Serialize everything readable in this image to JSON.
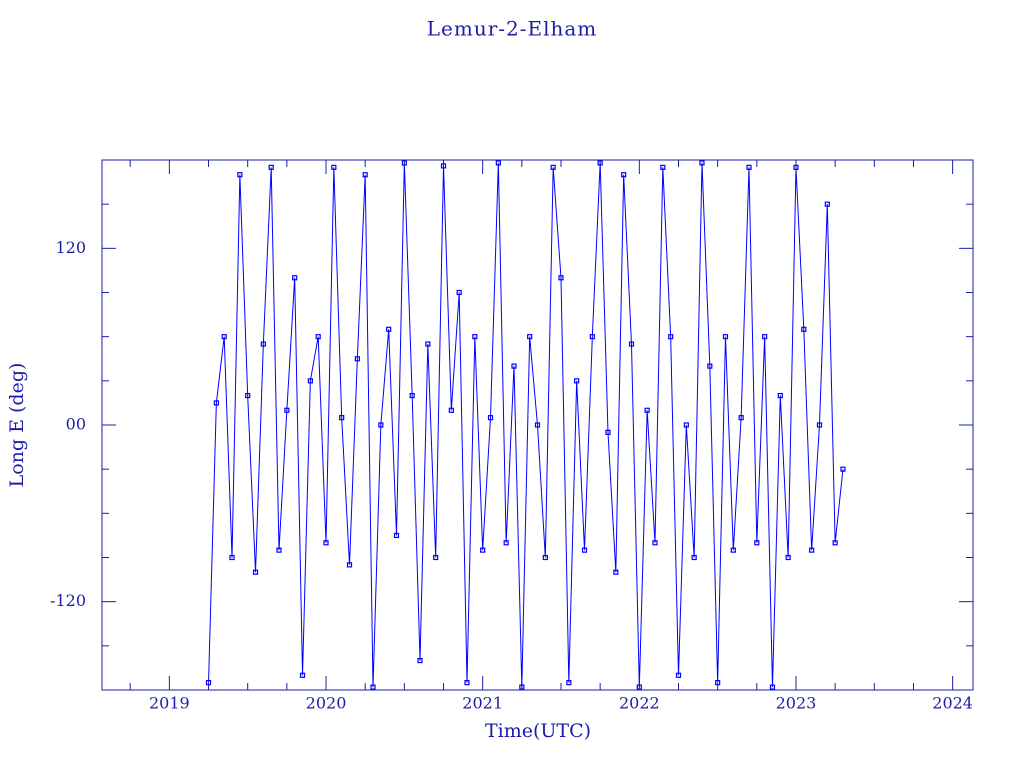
{
  "chart_data": {
    "type": "line",
    "title": "Lemur-2-Elham",
    "x_label": "Time(UTC)",
    "y_label": "Long E (deg)",
    "x": [
      2019.25,
      2019.3,
      2019.35,
      2019.4,
      2019.45,
      2019.5,
      2019.55,
      2019.6,
      2019.65,
      2019.7,
      2019.75,
      2019.8,
      2019.85,
      2019.9,
      2019.95,
      2020.0,
      2020.05,
      2020.1,
      2020.15,
      2020.2,
      2020.25,
      2020.3,
      2020.35,
      2020.4,
      2020.45,
      2020.5,
      2020.55,
      2020.6,
      2020.65,
      2020.7,
      2020.75,
      2020.8,
      2020.85,
      2020.9,
      2020.95,
      2021.0,
      2021.05,
      2021.1,
      2021.15,
      2021.2,
      2021.25,
      2021.3,
      2021.35,
      2021.4,
      2021.45,
      2021.5,
      2021.55,
      2021.6,
      2021.65,
      2021.7,
      2021.75,
      2021.8,
      2021.85,
      2021.9,
      2021.95,
      2022.0,
      2022.05,
      2022.1,
      2022.15,
      2022.2,
      2022.25,
      2022.3,
      2022.35,
      2022.4,
      2022.45,
      2022.5,
      2022.55,
      2022.6,
      2022.65,
      2022.7,
      2022.75,
      2022.8,
      2022.85,
      2022.9,
      2022.95,
      2023.0,
      2023.05,
      2023.1,
      2023.15,
      2023.2,
      2023.25,
      2023.3
    ],
    "series": [
      {
        "color": "#0000ff",
        "values": [
          -175,
          15,
          60,
          -90,
          170,
          20,
          -100,
          55,
          175,
          -85,
          10,
          100,
          -170,
          30,
          60,
          -80,
          175,
          5,
          -95,
          45,
          170,
          -178,
          0,
          65,
          -75,
          178,
          20,
          -160,
          55,
          -90,
          176,
          10,
          90,
          -175,
          60,
          -85,
          5,
          178,
          -80,
          40,
          -178,
          60,
          0,
          -90,
          175,
          100,
          -175,
          30,
          -85,
          60,
          178,
          -5,
          -100,
          170,
          55,
          -178,
          10,
          -80,
          175,
          60,
          -170,
          0,
          -90,
          178,
          40,
          -175,
          60,
          -85,
          5,
          175,
          -80,
          60,
          -178,
          20,
          -90,
          175,
          65,
          -85,
          0,
          150,
          -80,
          -30
        ]
      }
    ],
    "xlim": [
      2018.57,
      2024.13
    ],
    "xticks": [
      2019,
      2020,
      2021,
      2022,
      2023,
      2024
    ],
    "xticks_minor": [
      2018.75,
      2019.25,
      2019.5,
      2019.75,
      2020.25,
      2020.5,
      2020.75,
      2021.25,
      2021.5,
      2021.75,
      2022.25,
      2022.5,
      2022.75,
      2023.25,
      2023.5,
      2023.75
    ],
    "ylim": [
      -180,
      180
    ],
    "yticks": [
      -120,
      {
        "value": 0,
        "label": "00"
      },
      120
    ],
    "yticks_minor": [
      -150,
      -90,
      -60,
      -30,
      30,
      60,
      90,
      150
    ],
    "axis_color": "#1c1ca8"
  }
}
